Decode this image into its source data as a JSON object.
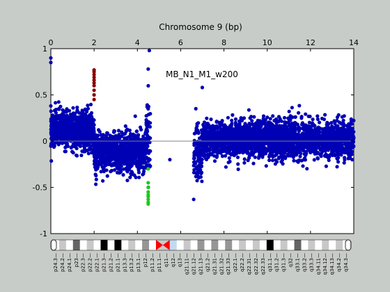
{
  "chart_data": {
    "type": "scatter",
    "title": "Chromosome 9 (bp)",
    "annotation": "MB_N1_M1_w200",
    "xlim": [
      0,
      14
    ],
    "ylim": [
      -1,
      1
    ],
    "x_ticks": [
      0,
      2,
      4,
      6,
      8,
      10,
      12,
      14
    ],
    "y_ticks": [
      1,
      0.5,
      0,
      -0.5,
      -1
    ],
    "grid": false,
    "colors": {
      "main": "#0000b4",
      "gain": "#8b0000",
      "loss": "#1ec81e",
      "baseline": "#808080",
      "background": "#ffffff"
    },
    "segments": [
      {
        "name": "",
        "color_key": "main",
        "x_range": [
          0,
          2.0
        ],
        "y_center": 0.12,
        "y_spread": 0.12,
        "count": 900
      },
      {
        "name": "",
        "color_key": "main",
        "x_range": [
          2.0,
          4.4
        ],
        "y_center": -0.12,
        "y_spread": 0.13,
        "count": 900
      },
      {
        "name": "",
        "color_key": "main",
        "x_range": [
          4.4,
          4.6
        ],
        "y_center": 0.0,
        "y_spread": 0.3,
        "count": 60
      },
      {
        "name": "",
        "color_key": "main",
        "x_range": [
          6.6,
          7.0
        ],
        "y_center": -0.15,
        "y_spread": 0.2,
        "count": 120
      },
      {
        "name": "",
        "color_key": "main",
        "x_range": [
          7.0,
          14.0
        ],
        "y_center": 0.02,
        "y_spread": 0.12,
        "count": 2600
      }
    ],
    "highlight_points": [
      {
        "color_key": "gain",
        "x": 2.0,
        "y": [
          0.45,
          0.5,
          0.55,
          0.6,
          0.63,
          0.66,
          0.69,
          0.72,
          0.75,
          0.77
        ]
      },
      {
        "color_key": "loss",
        "x": 4.5,
        "y": [
          -0.3,
          -0.45,
          -0.5,
          -0.55,
          -0.58,
          -0.6,
          -0.63,
          -0.66,
          -0.68
        ]
      }
    ],
    "outlier_points": [
      {
        "x": 0.0,
        "y": 0.9
      },
      {
        "x": 0.0,
        "y": 0.85
      },
      {
        "x": 4.55,
        "y": 0.98
      },
      {
        "x": 4.5,
        "y": 0.78
      },
      {
        "x": 7.0,
        "y": 0.58
      },
      {
        "x": 5.5,
        "y": -0.2
      },
      {
        "x": 6.6,
        "y": -0.63
      },
      {
        "x": 6.7,
        "y": 0.35
      },
      {
        "x": 2.4,
        "y": -0.43
      },
      {
        "x": 3.9,
        "y": 0.27
      }
    ],
    "ideogram": {
      "bands": [
        {
          "label": "p24.3",
          "stain": "gneg"
        },
        {
          "label": "p24.2",
          "stain": "gpos25"
        },
        {
          "label": "p24.1",
          "stain": "gneg"
        },
        {
          "label": "p23",
          "stain": "gpos75"
        },
        {
          "label": "p22.3",
          "stain": "gneg"
        },
        {
          "label": "p22.2",
          "stain": "gpos25"
        },
        {
          "label": "p22.1",
          "stain": "gneg"
        },
        {
          "label": "p21.3",
          "stain": "gpos100"
        },
        {
          "label": "p21.2",
          "stain": "gneg"
        },
        {
          "label": "p21.1",
          "stain": "gpos100"
        },
        {
          "label": "p13.3",
          "stain": "gneg"
        },
        {
          "label": "p13.2",
          "stain": "gpos25"
        },
        {
          "label": "p13.1",
          "stain": "gneg"
        },
        {
          "label": "p12",
          "stain": "gpos50"
        },
        {
          "label": "p11.2",
          "stain": "gneg"
        },
        {
          "label": "p11.1",
          "stain": "acen"
        },
        {
          "label": "q11",
          "stain": "acen"
        },
        {
          "label": "q12",
          "stain": "gvar"
        },
        {
          "label": "q13",
          "stain": "gneg"
        },
        {
          "label": "q21.11",
          "stain": "gpos25"
        },
        {
          "label": "q21.12",
          "stain": "gneg"
        },
        {
          "label": "q21.13",
          "stain": "gpos50"
        },
        {
          "label": "q21.2",
          "stain": "gneg"
        },
        {
          "label": "q21.31",
          "stain": "gpos50"
        },
        {
          "label": "q21.32",
          "stain": "gneg"
        },
        {
          "label": "q21.33",
          "stain": "gpos50"
        },
        {
          "label": "q22.1",
          "stain": "gneg"
        },
        {
          "label": "q22.2",
          "stain": "gpos25"
        },
        {
          "label": "q22.31",
          "stain": "gneg"
        },
        {
          "label": "q22.32",
          "stain": "gpos25"
        },
        {
          "label": "q22.33",
          "stain": "gneg"
        },
        {
          "label": "q31.1",
          "stain": "gpos100"
        },
        {
          "label": "q31.2",
          "stain": "gneg"
        },
        {
          "label": "q31.3",
          "stain": "gpos25"
        },
        {
          "label": "q32",
          "stain": "gneg"
        },
        {
          "label": "q33.1",
          "stain": "gpos75"
        },
        {
          "label": "q33.2",
          "stain": "gneg"
        },
        {
          "label": "q33.3",
          "stain": "gpos25"
        },
        {
          "label": "q34.11",
          "stain": "gneg"
        },
        {
          "label": "q34.12",
          "stain": "gpos25"
        },
        {
          "label": "q34.13",
          "stain": "gneg"
        },
        {
          "label": "q34.2",
          "stain": "gpos25"
        },
        {
          "label": "q34.3",
          "stain": "gneg"
        }
      ]
    }
  }
}
